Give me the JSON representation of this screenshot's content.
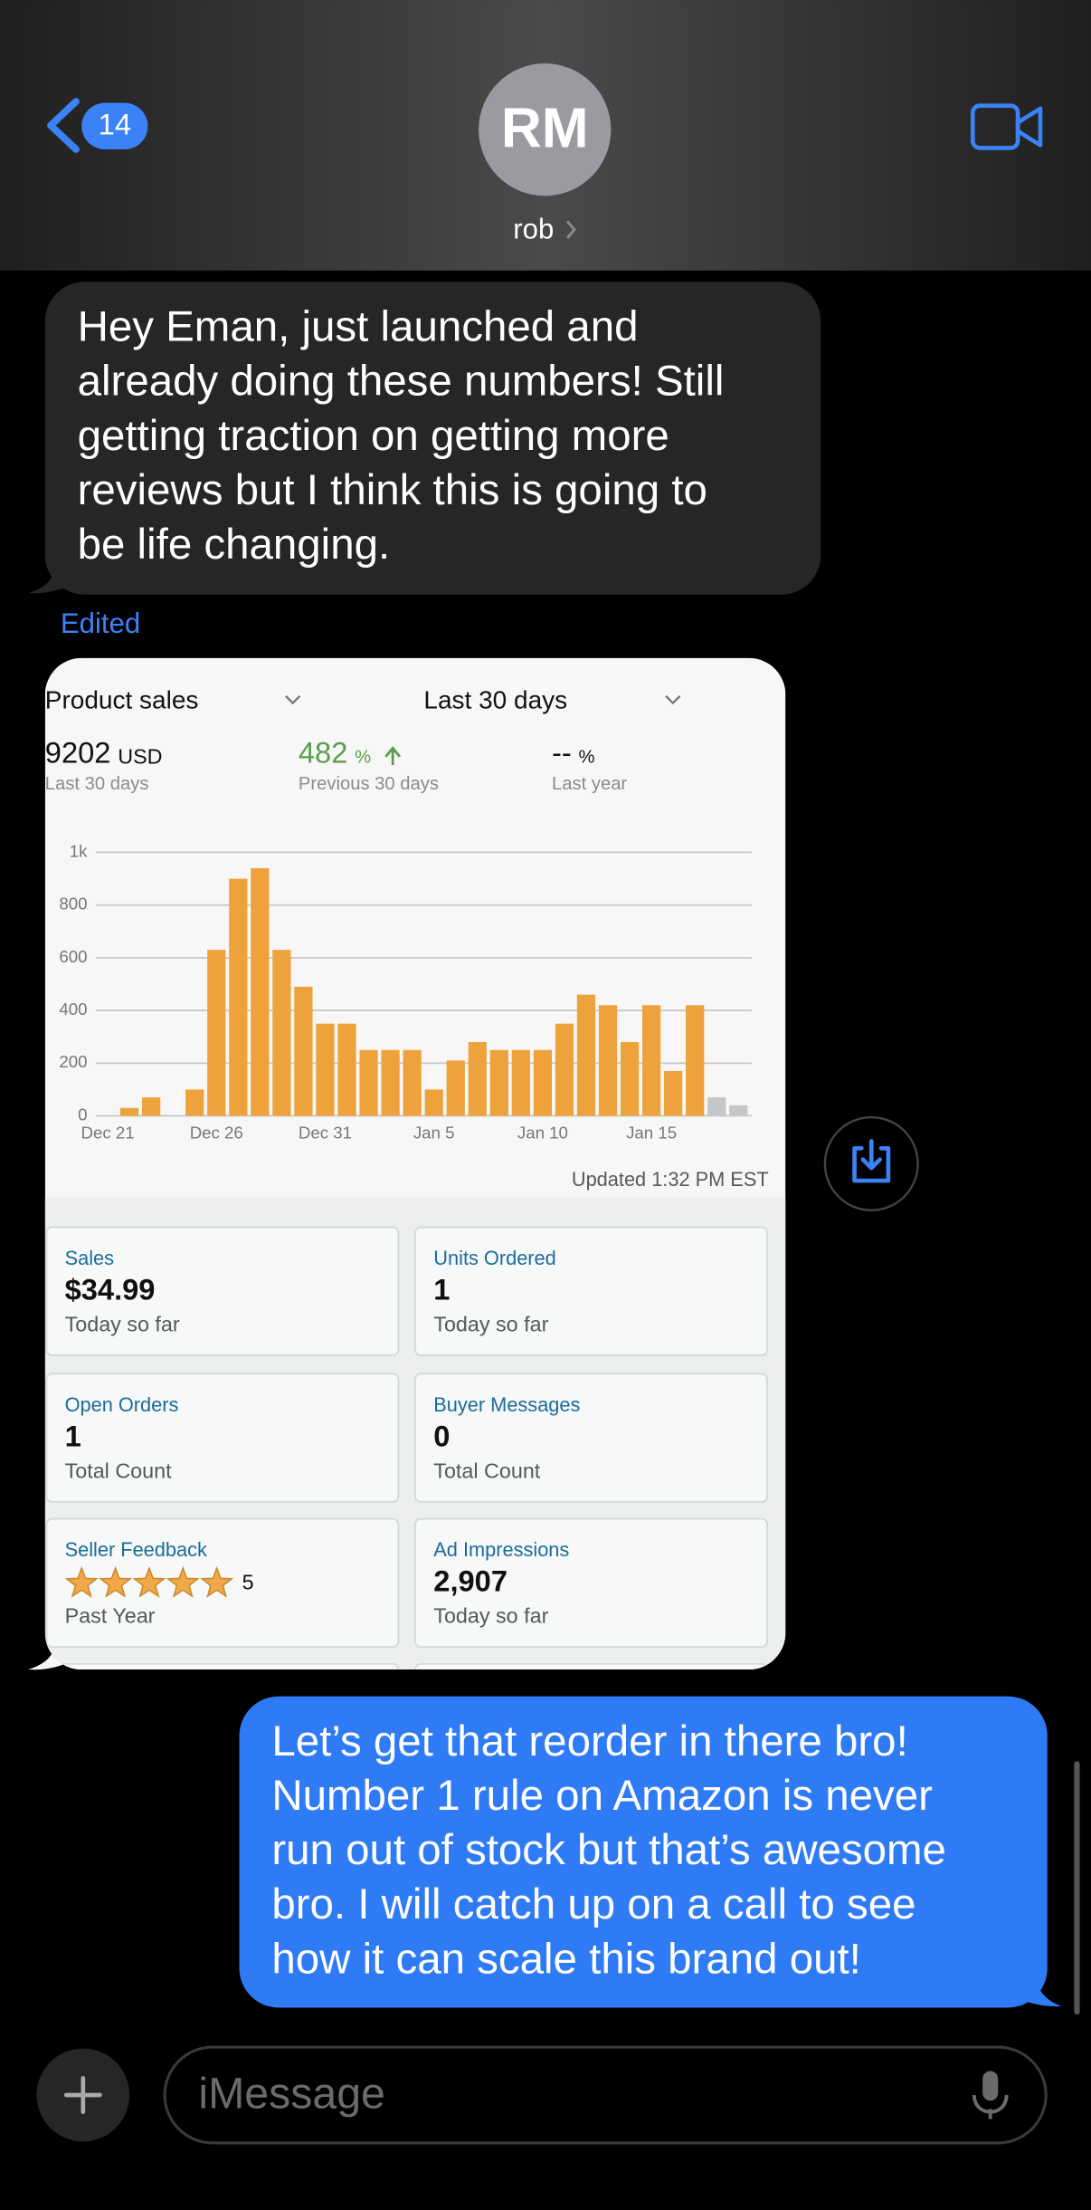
{
  "header": {
    "back_count": "14",
    "avatar_initials": "RM",
    "contact_name": "rob"
  },
  "messages": [
    {
      "lines": [
        "Hey Eman, just launched and",
        "already doing these numbers! Still",
        "getting traction on getting more",
        "reviews but I think this is going to",
        "be life changing."
      ],
      "status": "Edited"
    },
    {
      "lines": [
        "Let’s get that reorder in there bro!",
        "Number 1 rule on Amazon is never",
        "run out of stock but that’s awesome",
        "bro. I will catch up on a call to see",
        "how it can scale this brand out!"
      ]
    }
  ],
  "attachment": {
    "filters": [
      "Product sales",
      "Last 30 days"
    ],
    "stats": [
      {
        "value": "9202",
        "unit": "USD",
        "period": "Last 30 days"
      },
      {
        "value": "482",
        "unit": "%",
        "period": "Previous 30 days"
      },
      {
        "value": "--",
        "unit": "%",
        "period": "Last year"
      }
    ],
    "updated": "Updated 1:32 PM EST",
    "tiles": [
      {
        "label": "Sales",
        "value": "$34.99",
        "note": "Today so far"
      },
      {
        "label": "Units Ordered",
        "value": "1",
        "note": "Today so far"
      },
      {
        "label": "Open Orders",
        "value": "1",
        "note": "Total Count"
      },
      {
        "label": "Buyer Messages",
        "value": "0",
        "note": "Total Count"
      },
      {
        "label": "Seller Feedback",
        "value": "5",
        "note": "Past Year"
      },
      {
        "label": "Ad Impressions",
        "value": "2,907",
        "note": "Today so far"
      }
    ]
  },
  "chart_data": {
    "type": "bar",
    "categories": [
      "Dec 21",
      null,
      null,
      null,
      null,
      "Dec 26",
      null,
      null,
      null,
      null,
      "Dec 31",
      null,
      null,
      null,
      null,
      "Jan 5",
      null,
      null,
      null,
      null,
      "Jan 10",
      null,
      null,
      null,
      null,
      "Jan 15",
      null,
      null,
      null,
      null
    ],
    "values": [
      0,
      30,
      70,
      0,
      100,
      630,
      900,
      940,
      630,
      490,
      350,
      350,
      250,
      250,
      250,
      100,
      210,
      280,
      250,
      250,
      250,
      350,
      460,
      420,
      280,
      420,
      170,
      420,
      70,
      40
    ],
    "colors": [
      "#eea23c",
      "#eea23c",
      "#eea23c",
      "#eea23c",
      "#eea23c",
      "#eea23c",
      "#eea23c",
      "#eea23c",
      "#eea23c",
      "#eea23c",
      "#eea23c",
      "#eea23c",
      "#eea23c",
      "#eea23c",
      "#eea23c",
      "#eea23c",
      "#eea23c",
      "#eea23c",
      "#eea23c",
      "#eea23c",
      "#eea23c",
      "#eea23c",
      "#eea23c",
      "#eea23c",
      "#eea23c",
      "#eea23c",
      "#eea23c",
      "#eea23c",
      "#c4c6c8",
      "#c4c6c8"
    ],
    "ylim": [
      0,
      1000
    ],
    "yticks": [
      0,
      200,
      400,
      600,
      800,
      {
        "value": 1000,
        "label": "1k"
      }
    ],
    "grid": true
  },
  "composer": {
    "placeholder": "iMessage"
  }
}
